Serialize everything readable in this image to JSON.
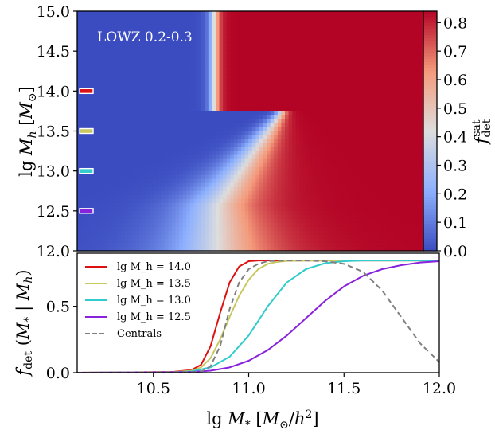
{
  "chart_data": [
    {
      "type": "heatmap",
      "annotation": "LOWZ 0.2-0.3",
      "ylabel": "lg M_h [M⊙]",
      "xlim": [
        10.1,
        12.0
      ],
      "ylim": [
        12.0,
        15.0
      ],
      "yticks": [
        "12.0",
        "12.5",
        "13.0",
        "13.5",
        "14.0",
        "14.5",
        "15.0"
      ],
      "colorbar": {
        "label": "f_det^sat",
        "range": [
          0.0,
          0.84
        ],
        "ticks": [
          "0.0",
          "0.1",
          "0.2",
          "0.3",
          "0.4",
          "0.5",
          "0.6",
          "0.7",
          "0.8"
        ],
        "colormap": "coolwarm"
      },
      "markers": [
        {
          "y": 14.0,
          "color": "#dd1111"
        },
        {
          "y": 13.5,
          "color": "#c8c860"
        },
        {
          "y": 13.0,
          "color": "#33cccc"
        },
        {
          "y": 12.5,
          "color": "#8822dd"
        }
      ]
    },
    {
      "type": "line",
      "xlabel": "lg M_* [M⊙/h²]",
      "ylabel": "f_det (M_* | M_h)",
      "xlim": [
        10.1,
        12.0
      ],
      "ylim": [
        0.0,
        0.9
      ],
      "xticks": [
        "10.5",
        "11.0",
        "11.5",
        "12.0"
      ],
      "yticks": [
        "0.0",
        "0.5"
      ],
      "legend_position": "upper-left",
      "series": [
        {
          "name": "lg M_h = 14.0",
          "color": "#dd1111",
          "dash": false,
          "x": [
            10.1,
            10.6,
            10.7,
            10.75,
            10.8,
            10.85,
            10.9,
            10.95,
            11.0,
            11.05,
            11.1,
            11.2,
            12.0
          ],
          "y": [
            0.0,
            0.005,
            0.02,
            0.06,
            0.2,
            0.45,
            0.68,
            0.8,
            0.84,
            0.845,
            0.845,
            0.845,
            0.845
          ]
        },
        {
          "name": "lg M_h = 13.5",
          "color": "#c8c860",
          "dash": false,
          "x": [
            10.1,
            10.6,
            10.7,
            10.75,
            10.8,
            10.85,
            10.9,
            10.95,
            11.0,
            11.05,
            11.1,
            11.15,
            11.2,
            11.3,
            12.0
          ],
          "y": [
            0.0,
            0.003,
            0.015,
            0.04,
            0.11,
            0.25,
            0.42,
            0.58,
            0.7,
            0.78,
            0.82,
            0.835,
            0.842,
            0.845,
            0.845
          ]
        },
        {
          "name": "lg M_h = 13.0",
          "color": "#33cccc",
          "dash": false,
          "x": [
            10.1,
            10.6,
            10.7,
            10.8,
            10.9,
            11.0,
            11.1,
            11.2,
            11.3,
            11.4,
            11.5,
            11.6,
            12.0
          ],
          "y": [
            0.0,
            0.002,
            0.01,
            0.04,
            0.12,
            0.28,
            0.5,
            0.68,
            0.78,
            0.825,
            0.84,
            0.845,
            0.845
          ]
        },
        {
          "name": "lg M_h = 12.5",
          "color": "#8822dd",
          "dash": false,
          "x": [
            10.1,
            10.7,
            10.8,
            10.9,
            11.0,
            11.1,
            11.2,
            11.3,
            11.4,
            11.5,
            11.6,
            11.7,
            11.8,
            11.9,
            12.0
          ],
          "y": [
            0.0,
            0.005,
            0.015,
            0.04,
            0.09,
            0.17,
            0.28,
            0.41,
            0.54,
            0.65,
            0.73,
            0.78,
            0.81,
            0.83,
            0.84
          ]
        },
        {
          "name": "Centrals",
          "color": "#808080",
          "dash": true,
          "x": [
            10.1,
            10.75,
            10.8,
            10.85,
            10.9,
            10.95,
            11.0,
            11.05,
            11.1,
            11.2,
            11.3,
            11.4,
            11.5,
            11.6,
            11.7,
            11.8,
            11.9,
            12.0
          ],
          "y": [
            0.0,
            0.005,
            0.05,
            0.2,
            0.48,
            0.68,
            0.78,
            0.82,
            0.84,
            0.845,
            0.845,
            0.84,
            0.82,
            0.76,
            0.62,
            0.42,
            0.22,
            0.08
          ]
        }
      ]
    }
  ]
}
